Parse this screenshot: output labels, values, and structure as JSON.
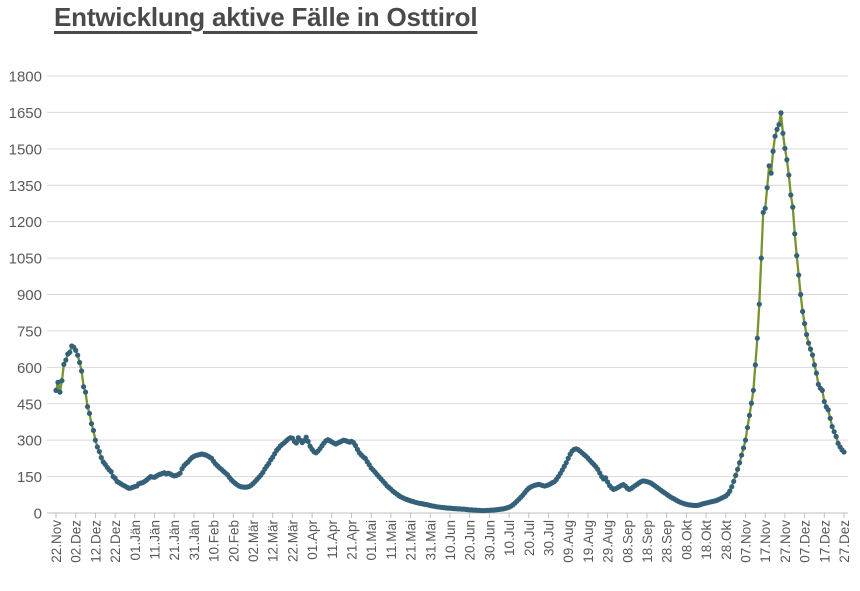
{
  "page": {
    "title": "Entwicklung aktive Fälle in Osttirol"
  },
  "chart_data": {
    "type": "line",
    "title": "Entwicklung aktive Fälle in Osttirol",
    "legend": "none",
    "grid": "horizontal",
    "ylim": [
      0,
      1800
    ],
    "y_tick_step": 150,
    "y_tick_labels": [
      "0",
      "150",
      "300",
      "450",
      "600",
      "750",
      "900",
      "1050",
      "1200",
      "1350",
      "1500",
      "1650",
      "1800"
    ],
    "x_tick_interval_days": 10,
    "x_tick_labels": [
      "22.Nov",
      "02.Dez",
      "12.Dez",
      "22.Dez",
      "01.Jän",
      "11.Jän",
      "21.Jän",
      "31.Jän",
      "10.Feb",
      "20.Feb",
      "02.Mär",
      "12.Mär",
      "22.Mär",
      "01.Apr",
      "11.Apr",
      "21.Apr",
      "01.Mai",
      "11.Mai",
      "21.Mai",
      "31.Mai",
      "10.Jun",
      "20.Jun",
      "30.Jun",
      "10.Jul",
      "20.Jul",
      "30.Jul",
      "09.Aug",
      "19.Aug",
      "29.Aug",
      "08.Sep",
      "18.Sep",
      "28.Sep",
      "08.Okt",
      "18.Okt",
      "28.Okt",
      "07.Nov",
      "17.Nov",
      "27.Nov",
      "07.Dez",
      "17.Dez",
      "27.Dez"
    ],
    "series": [
      {
        "start_label": "22.Nov",
        "frequency": "daily",
        "values": [
          505,
          538,
          498,
          545,
          612,
          630,
          655,
          662,
          688,
          683,
          670,
          650,
          620,
          585,
          520,
          498,
          438,
          410,
          368,
          340,
          300,
          272,
          253,
          228,
          210,
          200,
          188,
          178,
          170,
          150,
          143,
          130,
          125,
          120,
          115,
          111,
          106,
          102,
          103,
          106,
          109,
          111,
          120,
          123,
          125,
          130,
          136,
          143,
          150,
          148,
          147,
          152,
          157,
          160,
          163,
          166,
          161,
          164,
          161,
          156,
          153,
          155,
          158,
          164,
          182,
          195,
          203,
          210,
          220,
          228,
          233,
          237,
          239,
          241,
          243,
          241,
          239,
          235,
          230,
          225,
          213,
          202,
          194,
          186,
          180,
          172,
          165,
          158,
          147,
          137,
          129,
          122,
          116,
          111,
          108,
          107,
          106,
          107,
          109,
          114,
          121,
          129,
          138,
          147,
          156,
          167,
          181,
          193,
          204,
          219,
          230,
          244,
          258,
          267,
          277,
          284,
          290,
          298,
          305,
          310,
          308,
          295,
          288,
          310,
          300,
          290,
          298,
          312,
          295,
          275,
          262,
          252,
          248,
          255,
          265,
          277,
          288,
          297,
          302,
          298,
          293,
          288,
          284,
          288,
          292,
          296,
          300,
          298,
          295,
          292,
          295,
          290,
          278,
          262,
          248,
          239,
          231,
          225,
          211,
          199,
          185,
          177,
          168,
          158,
          149,
          140,
          131,
          122,
          112,
          105,
          98,
          90,
          84,
          78,
          72,
          67,
          63,
          59,
          56,
          53,
          50,
          48,
          45,
          43,
          41,
          39,
          38,
          36,
          35,
          33,
          31,
          29,
          28,
          26,
          25,
          24,
          23,
          22,
          21,
          20,
          20,
          19,
          18,
          18,
          17,
          17,
          16,
          16,
          15,
          14,
          13,
          13,
          12,
          12,
          11,
          11,
          10,
          10,
          10,
          11,
          11,
          12,
          12,
          13,
          14,
          15,
          16,
          17,
          19,
          21,
          24,
          28,
          34,
          41,
          49,
          57,
          65,
          74,
          84,
          94,
          102,
          107,
          111,
          114,
          116,
          118,
          116,
          113,
          111,
          113,
          116,
          120,
          125,
          129,
          138,
          150,
          163,
          177,
          192,
          207,
          225,
          242,
          255,
          262,
          264,
          261,
          255,
          248,
          241,
          234,
          226,
          217,
          208,
          200,
          191,
          180,
          165,
          150,
          140,
          145,
          128,
          113,
          104,
          97,
          100,
          104,
          109,
          114,
          117,
          111,
          102,
          97,
          101,
          107,
          113,
          118,
          124,
          129,
          132,
          131,
          129,
          127,
          123,
          118,
          112,
          106,
          100,
          94,
          88,
          83,
          77,
          71,
          66,
          61,
          57,
          52,
          48,
          44,
          41,
          38,
          36,
          34,
          33,
          32,
          31,
          31,
          32,
          34,
          37,
          39,
          41,
          43,
          45,
          47,
          49,
          51,
          54,
          58,
          62,
          66,
          70,
          78,
          90,
          108,
          130,
          155,
          180,
          207,
          238,
          268,
          300,
          352,
          402,
          452,
          505,
          610,
          720,
          860,
          1050,
          1238,
          1255,
          1340,
          1430,
          1400,
          1490,
          1552,
          1580,
          1600,
          1648,
          1564,
          1502,
          1455,
          1392,
          1310,
          1260,
          1150,
          1060,
          980,
          900,
          830,
          780,
          735,
          700,
          675,
          651,
          610,
          576,
          530,
          514,
          505,
          459,
          437,
          425,
          390,
          356,
          335,
          315,
          287,
          272,
          260,
          251
        ]
      }
    ],
    "colors": {
      "line": "#77942e",
      "marker": "#346079",
      "grid": "#d9d9d9",
      "axis": "#bfbfbf",
      "tick_label": "#595959",
      "title": "#4a4a4a"
    }
  }
}
